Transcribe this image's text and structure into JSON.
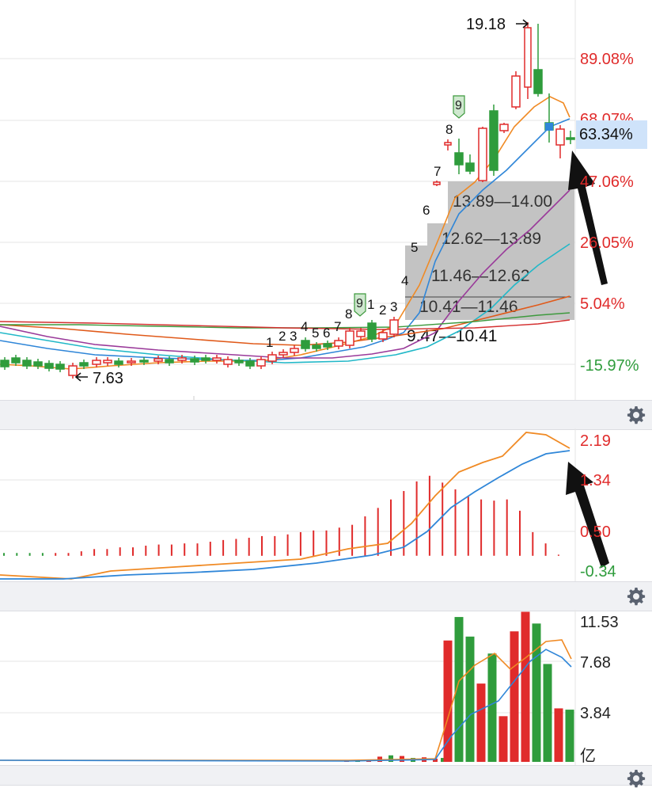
{
  "colors": {
    "up": "#e02b2b",
    "down": "#2f9c3c",
    "ma5": "#f08a24",
    "ma10": "#2f86d8",
    "ma20": "#9a3a9a",
    "ma30": "#22b8c8",
    "ma60": "#e05a1a",
    "ma120": "#3e9a3e",
    "ma250": "#d43030",
    "zone": "#c3c3c3",
    "arrow": "#111111",
    "highlight": "#cfe3fa"
  },
  "main": {
    "right_axis": [
      {
        "text": "89.08%",
        "color": "red"
      },
      {
        "text": "68.07%",
        "color": "red"
      },
      {
        "text": "47.06%",
        "color": "red"
      },
      {
        "text": "26.05%",
        "color": "red"
      },
      {
        "text": "5.04%",
        "color": "red"
      },
      {
        "text": "-15.97%",
        "color": "green"
      }
    ],
    "current_label": "63.34%",
    "high_label": "19.18",
    "low_label": "7.63",
    "price_zones": [
      {
        "label": "13.89—14.00"
      },
      {
        "label": "12.62—13.89"
      },
      {
        "label": "11.46—12.62"
      },
      {
        "label": "10.41—11.46"
      },
      {
        "label": "9.47—10.41"
      }
    ],
    "sequence_numbers": [
      "1",
      "2",
      "3",
      "4",
      "5",
      "6",
      "7",
      "8",
      "9",
      "1",
      "2",
      "3",
      "4",
      "5",
      "6",
      "7",
      "8",
      "9"
    ],
    "signal_badge_1": "9",
    "signal_badge_2": "9"
  },
  "macd": {
    "right_axis": [
      {
        "text": "2.19",
        "color": "red"
      },
      {
        "text": "1.34",
        "color": "red"
      },
      {
        "text": "0.50",
        "color": "red"
      },
      {
        "text": "-0.34",
        "color": "green"
      }
    ]
  },
  "volume": {
    "right_axis": [
      "11.53",
      "7.68",
      "3.84"
    ],
    "unit": "亿"
  },
  "chart_data": {
    "type": "bar",
    "volume_ylim": [
      0,
      11.53
    ],
    "volume_bars": [
      {
        "v": 0.15,
        "dir": "up"
      },
      {
        "v": 0.1,
        "dir": "down"
      },
      {
        "v": 0.12,
        "dir": "up"
      },
      {
        "v": 0.4,
        "dir": "up"
      },
      {
        "v": 0.5,
        "dir": "down"
      },
      {
        "v": 0.45,
        "dir": "up"
      },
      {
        "v": 0.3,
        "dir": "down"
      },
      {
        "v": 0.35,
        "dir": "up"
      },
      {
        "v": 0.25,
        "dir": "up"
      },
      {
        "v": 0.3,
        "dir": "down"
      },
      {
        "v": 9.3,
        "dir": "up"
      },
      {
        "v": 11.1,
        "dir": "down"
      },
      {
        "v": 9.6,
        "dir": "down"
      },
      {
        "v": 6.0,
        "dir": "up"
      },
      {
        "v": 8.3,
        "dir": "down"
      },
      {
        "v": 3.5,
        "dir": "up"
      },
      {
        "v": 10.0,
        "dir": "up"
      },
      {
        "v": 11.5,
        "dir": "up"
      },
      {
        "v": 10.6,
        "dir": "down"
      },
      {
        "v": 7.5,
        "dir": "down"
      },
      {
        "v": 4.1,
        "dir": "up"
      },
      {
        "v": 4.0,
        "dir": "down"
      }
    ],
    "macd_ylim": [
      -0.34,
      2.19
    ],
    "macd_hist": [
      0.05,
      0.05,
      0.05,
      0.05,
      0.05,
      0.05,
      0.08,
      0.12,
      0.12,
      0.15,
      0.15,
      0.18,
      0.2,
      0.2,
      0.22,
      0.22,
      0.25,
      0.28,
      0.3,
      0.32,
      0.35,
      0.35,
      0.38,
      0.42,
      0.45,
      0.45,
      0.5,
      0.55,
      0.7,
      0.85,
      1.0,
      1.15,
      1.32,
      1.42,
      1.3,
      1.18,
      1.05,
      1.0,
      0.98,
      1.0,
      0.8,
      0.42,
      0.22,
      0.02
    ]
  }
}
